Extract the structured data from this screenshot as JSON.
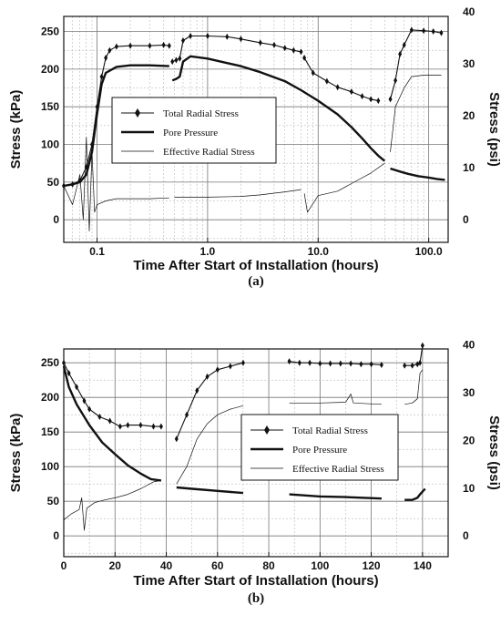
{
  "chart_data": [
    {
      "type": "line",
      "panel_label": "(a)",
      "xscale": "log",
      "xlabel": "Time After Start of Installation (hours)",
      "ylabel": "Stress (kPa)",
      "y2label": "Stress (psi)",
      "xlim": [
        0.05,
        150
      ],
      "ylim": [
        -30,
        270
      ],
      "y2lim": [
        -4.35,
        39.16
      ],
      "x_ticks": [
        {
          "v": 0.1,
          "label": "0.1"
        },
        {
          "v": 1,
          "label": "1.0"
        },
        {
          "v": 10,
          "label": "10.0"
        },
        {
          "v": 100,
          "label": "100.0"
        }
      ],
      "y_ticks": [
        {
          "v": 0,
          "label": "0"
        },
        {
          "v": 50,
          "label": "50"
        },
        {
          "v": 100,
          "label": "100"
        },
        {
          "v": 150,
          "label": "150"
        },
        {
          "v": 200,
          "label": "200"
        },
        {
          "v": 250,
          "label": "250"
        }
      ],
      "y2_ticks": [
        {
          "v": 0,
          "label": "0"
        },
        {
          "v": 10,
          "label": "10"
        },
        {
          "v": 20,
          "label": "20"
        },
        {
          "v": 30,
          "label": "30"
        },
        {
          "v": 40,
          "label": "40"
        }
      ],
      "grid": true,
      "legend_position": "center-left",
      "series": [
        {
          "name": "Total Radial Stress",
          "style": "marker-line",
          "segments": [
            [
              [
                0.05,
                45
              ],
              [
                0.06,
                47
              ],
              [
                0.07,
                52
              ],
              [
                0.08,
                70
              ],
              [
                0.09,
                100
              ],
              [
                0.1,
                150
              ],
              [
                0.11,
                190
              ],
              [
                0.12,
                215
              ],
              [
                0.13,
                225
              ],
              [
                0.15,
                230
              ],
              [
                0.2,
                231
              ],
              [
                0.3,
                231
              ],
              [
                0.4,
                232
              ],
              [
                0.45,
                231
              ]
            ],
            [
              [
                0.48,
                210
              ],
              [
                0.52,
                212
              ],
              [
                0.56,
                214
              ],
              [
                0.6,
                238
              ],
              [
                0.7,
                244
              ],
              [
                1.0,
                244
              ],
              [
                1.5,
                243
              ],
              [
                2.0,
                240
              ],
              [
                3.0,
                235
              ],
              [
                4.0,
                232
              ],
              [
                5.0,
                228
              ],
              [
                6.0,
                225
              ],
              [
                7.0,
                223
              ]
            ],
            [
              [
                7.5,
                215
              ],
              [
                9,
                195
              ],
              [
                12,
                184
              ],
              [
                15,
                176
              ],
              [
                20,
                170
              ],
              [
                25,
                164
              ],
              [
                30,
                160
              ],
              [
                35,
                158
              ]
            ],
            [
              [
                45,
                160
              ],
              [
                50,
                185
              ],
              [
                55,
                220
              ],
              [
                60,
                232
              ],
              [
                70,
                252
              ],
              [
                90,
                251
              ],
              [
                110,
                250
              ],
              [
                130,
                248
              ]
            ]
          ]
        },
        {
          "name": "Pore Pressure",
          "style": "thick",
          "segments": [
            [
              [
                0.05,
                45
              ],
              [
                0.06,
                47
              ],
              [
                0.07,
                50
              ],
              [
                0.08,
                60
              ],
              [
                0.09,
                90
              ],
              [
                0.1,
                140
              ],
              [
                0.11,
                180
              ],
              [
                0.12,
                195
              ],
              [
                0.15,
                203
              ],
              [
                0.2,
                205
              ],
              [
                0.3,
                205
              ],
              [
                0.45,
                204
              ]
            ],
            [
              [
                0.48,
                185
              ],
              [
                0.52,
                187
              ],
              [
                0.56,
                190
              ],
              [
                0.6,
                210
              ],
              [
                0.7,
                217
              ],
              [
                1.0,
                214
              ],
              [
                2.0,
                204
              ],
              [
                3.0,
                196
              ],
              [
                5.0,
                184
              ],
              [
                7.0,
                172
              ],
              [
                10,
                158
              ],
              [
                15,
                140
              ],
              [
                20,
                123
              ],
              [
                25,
                108
              ],
              [
                30,
                95
              ],
              [
                35,
                85
              ],
              [
                40,
                78
              ]
            ],
            [
              [
                45,
                68
              ],
              [
                55,
                64
              ],
              [
                65,
                61
              ],
              [
                80,
                58
              ],
              [
                100,
                56
              ],
              [
                120,
                54
              ],
              [
                140,
                53
              ]
            ]
          ]
        },
        {
          "name": "Effective Radial Stress",
          "style": "thin",
          "segments": [
            [
              [
                0.05,
                45
              ],
              [
                0.06,
                20
              ],
              [
                0.07,
                60
              ],
              [
                0.075,
                0
              ],
              [
                0.08,
                110
              ],
              [
                0.085,
                -15
              ],
              [
                0.09,
                90
              ],
              [
                0.095,
                10
              ],
              [
                0.1,
                20
              ],
              [
                0.12,
                25
              ],
              [
                0.15,
                28
              ],
              [
                0.2,
                28
              ],
              [
                0.3,
                28
              ],
              [
                0.45,
                29
              ]
            ],
            [
              [
                0.5,
                30
              ],
              [
                0.7,
                30
              ],
              [
                1.0,
                30
              ],
              [
                2.0,
                31
              ],
              [
                3.0,
                33
              ],
              [
                5.0,
                37
              ],
              [
                7.0,
                40
              ]
            ],
            [
              [
                7.5,
                35
              ],
              [
                8,
                10
              ],
              [
                10,
                32
              ],
              [
                15,
                38
              ],
              [
                20,
                48
              ],
              [
                30,
                62
              ],
              [
                40,
                75
              ]
            ],
            [
              [
                45,
                90
              ],
              [
                50,
                150
              ],
              [
                60,
                175
              ],
              [
                70,
                190
              ],
              [
                90,
                192
              ],
              [
                110,
                192
              ],
              [
                130,
                192
              ]
            ]
          ]
        }
      ]
    },
    {
      "type": "line",
      "panel_label": "(b)",
      "xscale": "linear",
      "xlabel": "Time After Start of Installation (hours)",
      "ylabel": "Stress (kPa)",
      "y2label": "Stress (psi)",
      "xlim": [
        0,
        150
      ],
      "ylim": [
        -30,
        270
      ],
      "y2lim": [
        -4.35,
        39.16
      ],
      "x_ticks": [
        {
          "v": 0,
          "label": "0"
        },
        {
          "v": 20,
          "label": "20"
        },
        {
          "v": 40,
          "label": "40"
        },
        {
          "v": 60,
          "label": "60"
        },
        {
          "v": 80,
          "label": "80"
        },
        {
          "v": 100,
          "label": "100"
        },
        {
          "v": 120,
          "label": "120"
        },
        {
          "v": 140,
          "label": "140"
        }
      ],
      "y_ticks": [
        {
          "v": 0,
          "label": "0"
        },
        {
          "v": 50,
          "label": "50"
        },
        {
          "v": 100,
          "label": "100"
        },
        {
          "v": 150,
          "label": "150"
        },
        {
          "v": 200,
          "label": "200"
        },
        {
          "v": 250,
          "label": "250"
        }
      ],
      "y2_ticks": [
        {
          "v": 0,
          "label": "0"
        },
        {
          "v": 10,
          "label": "10"
        },
        {
          "v": 20,
          "label": "20"
        },
        {
          "v": 30,
          "label": "30"
        },
        {
          "v": 40,
          "label": "40"
        }
      ],
      "grid": true,
      "legend_position": "center-right",
      "series": [
        {
          "name": "Total Radial Stress",
          "style": "marker-line",
          "segments": [
            [
              [
                0,
                250
              ],
              [
                2,
                235
              ],
              [
                5,
                215
              ],
              [
                8,
                195
              ],
              [
                10,
                183
              ],
              [
                14,
                172
              ],
              [
                18,
                166
              ],
              [
                22,
                158
              ],
              [
                25,
                160
              ],
              [
                30,
                160
              ],
              [
                35,
                158
              ],
              [
                38,
                158
              ]
            ],
            [
              [
                44,
                140
              ],
              [
                48,
                175
              ],
              [
                52,
                210
              ],
              [
                56,
                230
              ],
              [
                60,
                240
              ],
              [
                65,
                245
              ],
              [
                70,
                250
              ]
            ],
            [
              [
                88,
                252
              ],
              [
                92,
                250
              ],
              [
                96,
                250
              ],
              [
                100,
                249
              ],
              [
                104,
                249
              ],
              [
                108,
                249
              ],
              [
                112,
                249
              ],
              [
                116,
                248
              ],
              [
                120,
                248
              ],
              [
                124,
                247
              ]
            ],
            [
              [
                133,
                246
              ],
              [
                136,
                246
              ],
              [
                138,
                248
              ],
              [
                139,
                250
              ],
              [
                140,
                275
              ]
            ]
          ]
        },
        {
          "name": "Pore Pressure",
          "style": "thick",
          "segments": [
            [
              [
                0,
                245
              ],
              [
                2,
                215
              ],
              [
                5,
                190
              ],
              [
                10,
                160
              ],
              [
                15,
                135
              ],
              [
                20,
                118
              ],
              [
                25,
                102
              ],
              [
                30,
                90
              ],
              [
                34,
                82
              ],
              [
                38,
                80
              ]
            ],
            [
              [
                44,
                70
              ],
              [
                50,
                68
              ],
              [
                60,
                65
              ],
              [
                70,
                62
              ]
            ],
            [
              [
                88,
                60
              ],
              [
                100,
                57
              ],
              [
                110,
                56
              ],
              [
                124,
                54
              ]
            ],
            [
              [
                133,
                52
              ],
              [
                136,
                52
              ],
              [
                138,
                55
              ],
              [
                139,
                60
              ],
              [
                141,
                68
              ]
            ]
          ]
        },
        {
          "name": "Effective Radial Stress",
          "style": "thin",
          "segments": [
            [
              [
                0,
                23
              ],
              [
                3,
                32
              ],
              [
                6,
                38
              ],
              [
                7,
                55
              ],
              [
                8,
                8
              ],
              [
                9,
                40
              ],
              [
                12,
                48
              ],
              [
                16,
                52
              ],
              [
                20,
                55
              ],
              [
                25,
                60
              ],
              [
                30,
                68
              ],
              [
                35,
                78
              ],
              [
                38,
                80
              ]
            ],
            [
              [
                44,
                75
              ],
              [
                48,
                100
              ],
              [
                52,
                140
              ],
              [
                56,
                162
              ],
              [
                60,
                175
              ],
              [
                65,
                183
              ],
              [
                70,
                188
              ]
            ],
            [
              [
                88,
                192
              ],
              [
                100,
                192
              ],
              [
                110,
                193
              ],
              [
                112,
                205
              ],
              [
                113,
                192
              ],
              [
                124,
                190
              ]
            ],
            [
              [
                133,
                190
              ],
              [
                136,
                192
              ],
              [
                138,
                198
              ],
              [
                139,
                235
              ],
              [
                140,
                240
              ]
            ]
          ]
        }
      ]
    }
  ]
}
